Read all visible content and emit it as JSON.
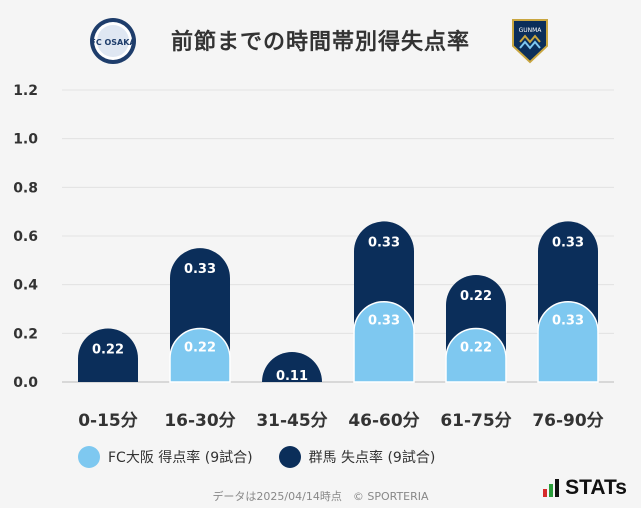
{
  "header": {
    "title": "前節までの時間帯別得失点率",
    "left_logo_text": "FC OSAKA",
    "right_logo_text": "GUNMA"
  },
  "legend": {
    "items": [
      {
        "label": "FC大阪 得点率 (9試合)",
        "color": "#7ec8f0"
      },
      {
        "label": "群馬 失点率 (9試合)",
        "color": "#0b2e5a"
      }
    ]
  },
  "footer": {
    "text": "データは2025/04/14時点　© SPORTERIA",
    "brand": "STATs"
  },
  "chart_data": {
    "type": "bar",
    "stacked": true,
    "categories": [
      "0-15分",
      "16-30分",
      "31-45分",
      "46-60分",
      "61-75分",
      "76-90分"
    ],
    "series": [
      {
        "name": "FC大阪 得点率 (9試合)",
        "values": [
          0,
          0.22,
          0,
          0.33,
          0.22,
          0.33
        ],
        "color": "#7ec8f0"
      },
      {
        "name": "群馬 失点率 (9試合)",
        "values": [
          0.22,
          0.33,
          0.11,
          0.33,
          0.22,
          0.33
        ],
        "color": "#0b2e5a"
      }
    ],
    "yticks": [
      "0.0",
      "0.2",
      "0.4",
      "0.6",
      "0.8",
      "1.0",
      "1.2"
    ],
    "ylim": [
      0,
      1.2
    ],
    "grid": true
  }
}
